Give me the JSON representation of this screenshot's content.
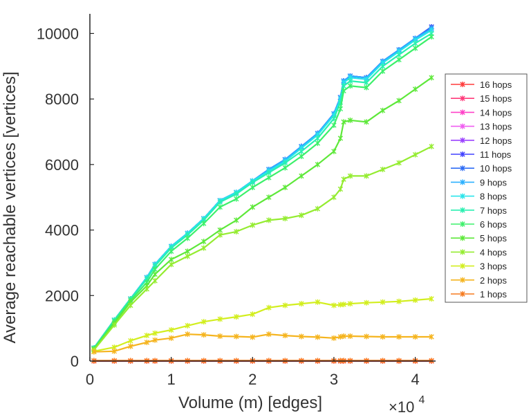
{
  "chart_data": {
    "type": "line",
    "xlabel": "Volume (m) [edges]",
    "ylabel": "Average reachable vertices [vertices]",
    "x_multiplier": "×10",
    "x_multiplier_exp": "4",
    "xlim": [
      0,
      4.25
    ],
    "ylim": [
      0,
      10600
    ],
    "xticks": [
      0,
      1,
      2,
      3,
      4
    ],
    "xtick_labels": [
      "0",
      "1",
      "2",
      "3",
      "4"
    ],
    "yticks": [
      0,
      2000,
      4000,
      6000,
      8000,
      10000
    ],
    "ytick_labels": [
      "0",
      "2000",
      "4000",
      "6000",
      "8000",
      "10000"
    ],
    "grid": false,
    "legend_position": "right",
    "x": [
      0.05,
      0.3,
      0.5,
      0.7,
      0.8,
      1.0,
      1.2,
      1.4,
      1.6,
      1.8,
      2.0,
      2.2,
      2.4,
      2.6,
      2.8,
      3.0,
      3.08,
      3.12,
      3.2,
      3.4,
      3.6,
      3.8,
      4.0,
      4.2
    ],
    "series": [
      {
        "name": "16 hops",
        "color": "#ff3a3a",
        "values": [
          0,
          0,
          0,
          0,
          0,
          0,
          0,
          0,
          0,
          0,
          0,
          0,
          0,
          0,
          0,
          0,
          0,
          0,
          0,
          0,
          0,
          0,
          0,
          0
        ]
      },
      {
        "name": "15 hops",
        "color": "#ff3a7a",
        "values": [
          400,
          1250,
          1900,
          2550,
          2950,
          3500,
          3900,
          4350,
          4900,
          5150,
          5500,
          5850,
          6150,
          6550,
          6950,
          7550,
          8050,
          8550,
          8700,
          8650,
          9150,
          9500,
          9850,
          10200
        ]
      },
      {
        "name": "14 hops",
        "color": "#ff40c8",
        "values": [
          400,
          1250,
          1900,
          2550,
          2950,
          3500,
          3900,
          4350,
          4900,
          5150,
          5500,
          5850,
          6150,
          6550,
          6950,
          7550,
          8050,
          8550,
          8700,
          8650,
          9150,
          9500,
          9850,
          10200
        ]
      },
      {
        "name": "13 hops",
        "color": "#ef5cf0",
        "values": [
          400,
          1250,
          1900,
          2550,
          2950,
          3500,
          3900,
          4350,
          4900,
          5150,
          5500,
          5850,
          6150,
          6550,
          6950,
          7550,
          8050,
          8550,
          8700,
          8650,
          9150,
          9500,
          9850,
          10200
        ]
      },
      {
        "name": "12 hops",
        "color": "#9a40ff",
        "values": [
          400,
          1250,
          1900,
          2550,
          2950,
          3500,
          3900,
          4350,
          4900,
          5150,
          5500,
          5850,
          6150,
          6550,
          6950,
          7550,
          8050,
          8550,
          8700,
          8650,
          9150,
          9500,
          9850,
          10200
        ]
      },
      {
        "name": "11 hops",
        "color": "#4040ff",
        "values": [
          400,
          1250,
          1900,
          2550,
          2950,
          3500,
          3900,
          4350,
          4900,
          5150,
          5500,
          5850,
          6150,
          6550,
          6950,
          7550,
          8050,
          8550,
          8700,
          8650,
          9150,
          9500,
          9850,
          10200
        ]
      },
      {
        "name": "10 hops",
        "color": "#2e6cf5",
        "values": [
          400,
          1250,
          1900,
          2550,
          2950,
          3500,
          3900,
          4350,
          4900,
          5150,
          5500,
          5850,
          6150,
          6550,
          6950,
          7550,
          8050,
          8550,
          8700,
          8650,
          9150,
          9500,
          9850,
          10200
        ]
      },
      {
        "name": "9 hops",
        "color": "#2ab0ff",
        "values": [
          400,
          1250,
          1900,
          2550,
          2950,
          3500,
          3900,
          4350,
          4900,
          5150,
          5500,
          5850,
          6150,
          6550,
          6950,
          7550,
          8050,
          8550,
          8700,
          8650,
          9150,
          9500,
          9850,
          10150
        ]
      },
      {
        "name": "8 hops",
        "color": "#28e4ea",
        "values": [
          400,
          1250,
          1900,
          2550,
          2950,
          3500,
          3900,
          4350,
          4900,
          5150,
          5500,
          5800,
          6100,
          6500,
          6900,
          7500,
          8000,
          8500,
          8650,
          8600,
          9100,
          9450,
          9800,
          10100
        ]
      },
      {
        "name": "7 hops",
        "color": "#28f0b0",
        "values": [
          400,
          1250,
          1900,
          2500,
          2900,
          3450,
          3850,
          4300,
          4850,
          5100,
          5450,
          5750,
          6050,
          6400,
          6800,
          7400,
          7900,
          8400,
          8550,
          8500,
          9000,
          9350,
          9700,
          10000
        ]
      },
      {
        "name": "6 hops",
        "color": "#3cf06a",
        "values": [
          380,
          1200,
          1850,
          2400,
          2800,
          3350,
          3750,
          4200,
          4700,
          4950,
          5300,
          5600,
          5900,
          6250,
          6650,
          7200,
          7700,
          8250,
          8400,
          8350,
          8850,
          9200,
          9550,
          9900
        ]
      },
      {
        "name": "5 hops",
        "color": "#5ee83a",
        "values": [
          360,
          1150,
          1800,
          2300,
          2650,
          3100,
          3350,
          3650,
          4000,
          4300,
          4700,
          5000,
          5300,
          5650,
          6000,
          6400,
          6800,
          7300,
          7350,
          7300,
          7650,
          7950,
          8300,
          8650
        ]
      },
      {
        "name": "4 hops",
        "color": "#94ec30",
        "values": [
          340,
          1100,
          1700,
          2200,
          2450,
          2950,
          3200,
          3450,
          3850,
          3950,
          4150,
          4300,
          4350,
          4450,
          4650,
          5000,
          5250,
          5550,
          5650,
          5650,
          5850,
          6050,
          6300,
          6550
        ]
      },
      {
        "name": "3 hops",
        "color": "#d2ee1e",
        "values": [
          300,
          420,
          620,
          780,
          850,
          950,
          1080,
          1200,
          1280,
          1350,
          1430,
          1630,
          1700,
          1750,
          1800,
          1700,
          1720,
          1730,
          1750,
          1780,
          1800,
          1820,
          1860,
          1900
        ]
      },
      {
        "name": "2 hops",
        "color": "#f5b41e",
        "values": [
          280,
          300,
          450,
          570,
          640,
          700,
          820,
          800,
          760,
          750,
          730,
          820,
          780,
          750,
          730,
          700,
          740,
          760,
          760,
          750,
          740,
          740,
          740,
          740
        ]
      },
      {
        "name": "1 hops",
        "color": "#f57a1e",
        "values": [
          12,
          12,
          12,
          12,
          12,
          12,
          12,
          12,
          12,
          12,
          12,
          12,
          12,
          12,
          12,
          12,
          12,
          12,
          12,
          12,
          12,
          12,
          12,
          12
        ]
      }
    ]
  }
}
